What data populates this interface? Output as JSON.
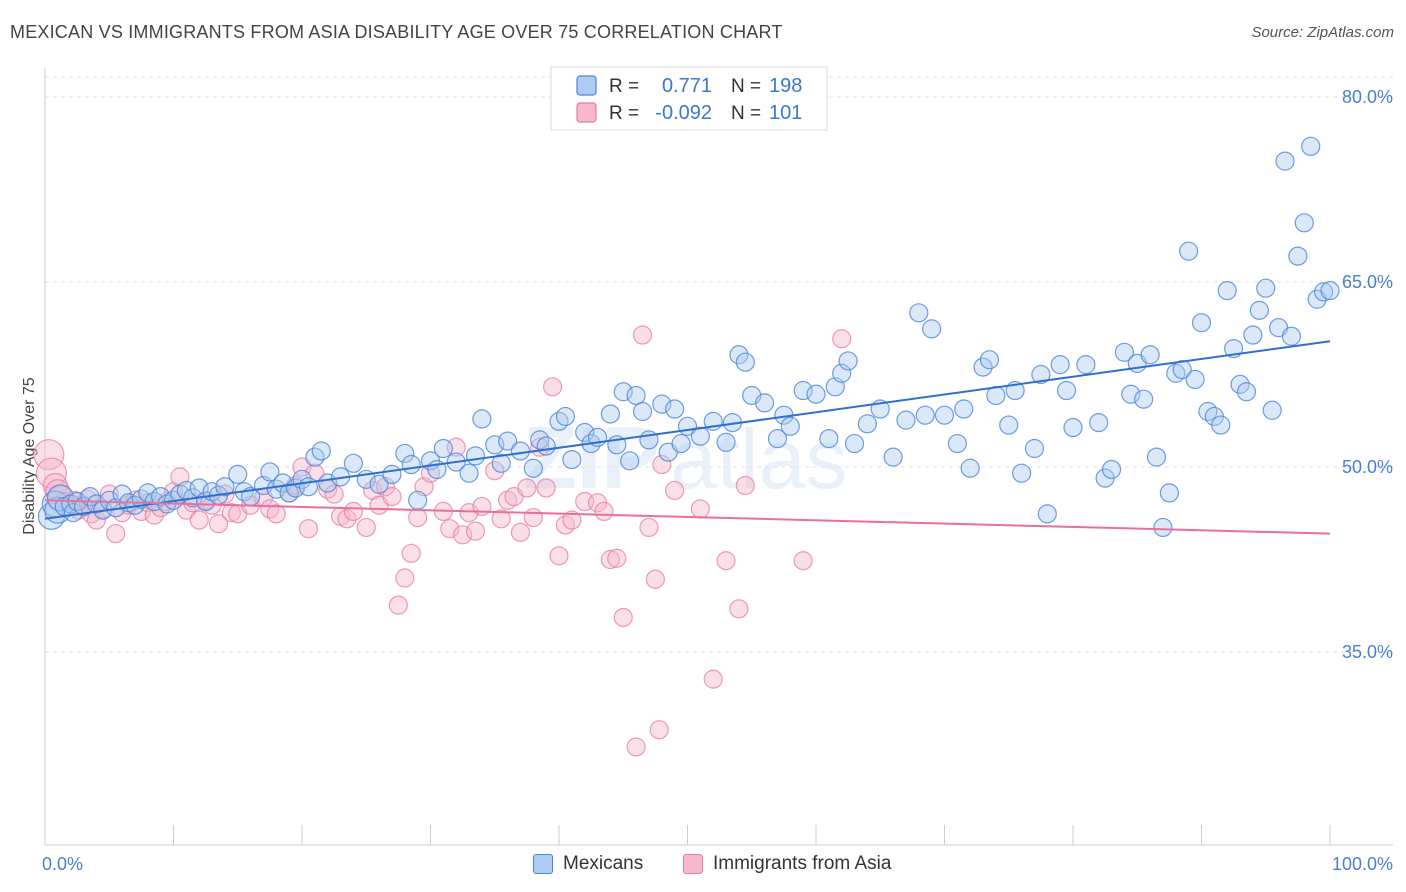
{
  "header": {
    "title": "MEXICAN VS IMMIGRANTS FROM ASIA DISABILITY AGE OVER 75 CORRELATION CHART",
    "source": "Source: ZipAtlas.com"
  },
  "colors": {
    "blue": "#4a86d8",
    "blue_fill": "#aecbf0",
    "pink": "#e87aa0",
    "pink_fill": "#f5b8cc",
    "blue_line": "#2f6fd0",
    "pink_line": "#e8709a",
    "tick_label": "#4a7fd0"
  },
  "legend": {
    "series1": {
      "r_label": "R =",
      "r_value": "0.771",
      "n_label": "N =",
      "n_value": "198"
    },
    "series2": {
      "r_label": "R =",
      "r_value": "-0.092",
      "n_label": "N =",
      "n_value": "101"
    }
  },
  "watermark": {
    "zip": "ZIP",
    "atlas": "atlas"
  },
  "chart_data": {
    "type": "scatter",
    "title": "MEXICAN VS IMMIGRANTS FROM ASIA DISABILITY AGE OVER 75 CORRELATION CHART",
    "xlabel": "",
    "ylabel": "Disability Age Over 75",
    "xlim": [
      0,
      100
    ],
    "ylim": [
      21,
      83
    ],
    "x_tick_labels": [
      "0.0%",
      "100.0%"
    ],
    "y_ticks": [
      35,
      50,
      65,
      80
    ],
    "y_tick_labels": [
      "35.0%",
      "50.0%",
      "65.0%",
      "80.0%"
    ],
    "legend_position": "top-center",
    "series": [
      {
        "name": "Mexicans",
        "r": 0.771,
        "n": 198,
        "trend": [
          [
            0,
            45.8
          ],
          [
            100,
            60.2
          ]
        ],
        "points": [
          [
            0.5,
            46
          ],
          [
            0.8,
            47
          ],
          [
            1,
            46.5
          ],
          [
            1.2,
            47.5
          ],
          [
            1.5,
            46.8
          ],
          [
            2,
            47
          ],
          [
            2.2,
            46.3
          ],
          [
            2.5,
            47.2
          ],
          [
            3,
            46.8
          ],
          [
            3.5,
            47.6
          ],
          [
            4,
            47
          ],
          [
            4.5,
            46.5
          ],
          [
            5,
            47.3
          ],
          [
            5.5,
            46.7
          ],
          [
            6,
            47.8
          ],
          [
            6.5,
            47.1
          ],
          [
            7,
            46.9
          ],
          [
            7.5,
            47.4
          ],
          [
            8,
            47.9
          ],
          [
            8.5,
            47.2
          ],
          [
            9,
            47.6
          ],
          [
            9.5,
            47
          ],
          [
            10,
            47.3
          ],
          [
            10.5,
            47.8
          ],
          [
            11,
            48.1
          ],
          [
            11.5,
            47.5
          ],
          [
            12,
            48.3
          ],
          [
            12.5,
            47.2
          ],
          [
            13,
            48
          ],
          [
            13.5,
            47.7
          ],
          [
            14,
            48.4
          ],
          [
            15,
            49.4
          ],
          [
            15.5,
            48
          ],
          [
            16,
            47.6
          ],
          [
            17,
            48.5
          ],
          [
            17.5,
            49.6
          ],
          [
            18,
            48.2
          ],
          [
            18.5,
            48.7
          ],
          [
            19,
            47.9
          ],
          [
            19.5,
            48.3
          ],
          [
            20,
            49
          ],
          [
            20.5,
            48.4
          ],
          [
            21,
            50.8
          ],
          [
            21.5,
            51.3
          ],
          [
            22,
            48.7
          ],
          [
            23,
            49.2
          ],
          [
            24,
            50.3
          ],
          [
            25,
            49
          ],
          [
            26,
            48.6
          ],
          [
            27,
            49.4
          ],
          [
            28,
            51.1
          ],
          [
            28.5,
            50.2
          ],
          [
            29,
            47.3
          ],
          [
            30,
            50.5
          ],
          [
            30.5,
            49.8
          ],
          [
            31,
            51.5
          ],
          [
            32,
            50.4
          ],
          [
            33,
            49.5
          ],
          [
            33.5,
            50.9
          ],
          [
            34,
            53.9
          ],
          [
            35,
            51.8
          ],
          [
            35.5,
            50.3
          ],
          [
            36,
            52.1
          ],
          [
            37,
            51.3
          ],
          [
            38,
            49.9
          ],
          [
            38.5,
            52.2
          ],
          [
            39,
            51.7
          ],
          [
            40,
            53.7
          ],
          [
            40.5,
            54.1
          ],
          [
            41,
            50.6
          ],
          [
            42,
            52.8
          ],
          [
            42.5,
            51.9
          ],
          [
            43,
            52.4
          ],
          [
            44,
            54.3
          ],
          [
            44.5,
            51.8
          ],
          [
            45,
            56.1
          ],
          [
            45.5,
            50.5
          ],
          [
            46,
            55.8
          ],
          [
            46.5,
            54.5
          ],
          [
            47,
            52.2
          ],
          [
            48,
            55.1
          ],
          [
            48.5,
            51.2
          ],
          [
            49,
            54.7
          ],
          [
            49.5,
            51.9
          ],
          [
            50,
            53.3
          ],
          [
            51,
            52.5
          ],
          [
            52,
            53.7
          ],
          [
            53,
            52
          ],
          [
            53.5,
            53.6
          ],
          [
            54,
            59.1
          ],
          [
            54.5,
            58.5
          ],
          [
            55,
            55.8
          ],
          [
            56,
            55.2
          ],
          [
            57,
            52.3
          ],
          [
            57.5,
            54.2
          ],
          [
            58,
            53.3
          ],
          [
            59,
            56.2
          ],
          [
            60,
            55.9
          ],
          [
            61,
            52.3
          ],
          [
            61.5,
            56.5
          ],
          [
            62,
            57.6
          ],
          [
            62.5,
            58.6
          ],
          [
            63,
            51.9
          ],
          [
            64,
            53.5
          ],
          [
            65,
            54.7
          ],
          [
            66,
            50.8
          ],
          [
            67,
            53.8
          ],
          [
            68,
            62.5
          ],
          [
            68.5,
            54.2
          ],
          [
            69,
            61.2
          ],
          [
            70,
            54.2
          ],
          [
            71,
            51.9
          ],
          [
            71.5,
            54.7
          ],
          [
            72,
            49.9
          ],
          [
            73,
            58.1
          ],
          [
            73.5,
            58.7
          ],
          [
            74,
            55.8
          ],
          [
            75,
            53.4
          ],
          [
            75.5,
            56.2
          ],
          [
            76,
            49.5
          ],
          [
            77,
            51.5
          ],
          [
            77.5,
            57.5
          ],
          [
            78,
            46.2
          ],
          [
            79,
            58.3
          ],
          [
            79.5,
            56.2
          ],
          [
            80,
            53.2
          ],
          [
            81,
            58.3
          ],
          [
            82,
            53.6
          ],
          [
            82.5,
            49.1
          ],
          [
            83,
            49.8
          ],
          [
            84,
            59.3
          ],
          [
            84.5,
            55.9
          ],
          [
            85,
            58.4
          ],
          [
            85.5,
            55.5
          ],
          [
            86,
            59.1
          ],
          [
            86.5,
            50.8
          ],
          [
            87,
            45.1
          ],
          [
            87.5,
            47.9
          ],
          [
            88,
            57.6
          ],
          [
            88.5,
            57.9
          ],
          [
            89,
            67.5
          ],
          [
            89.5,
            57.1
          ],
          [
            90,
            61.7
          ],
          [
            90.5,
            54.5
          ],
          [
            91,
            54.1
          ],
          [
            91.5,
            53.4
          ],
          [
            92,
            64.3
          ],
          [
            92.5,
            59.6
          ],
          [
            93,
            56.7
          ],
          [
            93.5,
            56.1
          ],
          [
            94,
            60.7
          ],
          [
            94.5,
            62.7
          ],
          [
            95,
            64.5
          ],
          [
            95.5,
            54.6
          ],
          [
            96,
            61.3
          ],
          [
            96.5,
            74.8
          ],
          [
            97,
            60.6
          ],
          [
            97.5,
            67.1
          ],
          [
            98,
            69.8
          ],
          [
            98.5,
            76
          ],
          [
            99,
            63.6
          ],
          [
            99.5,
            64.2
          ],
          [
            100,
            64.3
          ]
        ]
      },
      {
        "name": "Immigrants from Asia",
        "r": -0.092,
        "n": 101,
        "trend": [
          [
            0,
            47.3
          ],
          [
            100,
            44.6
          ]
        ],
        "points": [
          [
            0.3,
            51
          ],
          [
            0.5,
            49.5
          ],
          [
            0.8,
            48.5
          ],
          [
            1,
            48
          ],
          [
            1.2,
            47.5
          ],
          [
            1.5,
            47.2
          ],
          [
            1.8,
            46.8
          ],
          [
            2,
            47
          ],
          [
            2.3,
            47.3
          ],
          [
            2.6,
            46.5
          ],
          [
            3,
            46.9
          ],
          [
            3.3,
            47.4
          ],
          [
            3.6,
            46.2
          ],
          [
            4,
            45.7
          ],
          [
            4.5,
            46.6
          ],
          [
            5,
            47.8
          ],
          [
            5.5,
            44.6
          ],
          [
            6,
            46.3
          ],
          [
            6.5,
            46.9
          ],
          [
            7,
            47.3
          ],
          [
            7.5,
            46.4
          ],
          [
            8,
            47.1
          ],
          [
            8.5,
            46.1
          ],
          [
            9,
            46.7
          ],
          [
            9.5,
            47.2
          ],
          [
            10,
            48
          ],
          [
            10.5,
            49.2
          ],
          [
            11,
            46.5
          ],
          [
            11.5,
            47.1
          ],
          [
            12,
            45.7
          ],
          [
            12.5,
            47.3
          ],
          [
            13,
            46.9
          ],
          [
            13.5,
            45.4
          ],
          [
            14,
            47.8
          ],
          [
            14.5,
            46.3
          ],
          [
            15,
            46.2
          ],
          [
            16,
            46.9
          ],
          [
            17,
            47.5
          ],
          [
            17.5,
            46.6
          ],
          [
            18,
            46.2
          ],
          [
            19,
            47.9
          ],
          [
            19.5,
            48.5
          ],
          [
            20,
            50
          ],
          [
            20.5,
            45
          ],
          [
            21,
            49.5
          ],
          [
            22,
            48.2
          ],
          [
            22.5,
            47.8
          ],
          [
            23,
            46
          ],
          [
            23.5,
            45.8
          ],
          [
            24,
            46.4
          ],
          [
            25,
            45.1
          ],
          [
            25.5,
            48.1
          ],
          [
            26,
            46.9
          ],
          [
            26.5,
            48.4
          ],
          [
            27,
            47.6
          ],
          [
            27.5,
            38.8
          ],
          [
            28,
            41
          ],
          [
            28.5,
            43
          ],
          [
            29,
            45.9
          ],
          [
            29.5,
            48.4
          ],
          [
            30,
            49.5
          ],
          [
            31,
            46.4
          ],
          [
            31.5,
            45
          ],
          [
            32,
            51.6
          ],
          [
            32.5,
            44.5
          ],
          [
            33,
            46.3
          ],
          [
            33.5,
            44.8
          ],
          [
            34,
            46.8
          ],
          [
            35,
            49.7
          ],
          [
            35.5,
            45.8
          ],
          [
            36,
            47.3
          ],
          [
            36.5,
            47.6
          ],
          [
            37,
            44.7
          ],
          [
            37.5,
            48.3
          ],
          [
            38,
            45.9
          ],
          [
            38.5,
            51.6
          ],
          [
            39,
            48.3
          ],
          [
            39.5,
            56.5
          ],
          [
            40,
            42.8
          ],
          [
            40.5,
            45.3
          ],
          [
            41,
            45.7
          ],
          [
            42,
            47.2
          ],
          [
            43,
            47.1
          ],
          [
            43.5,
            46.4
          ],
          [
            44,
            42.5
          ],
          [
            44.5,
            42.6
          ],
          [
            45,
            37.8
          ],
          [
            46,
            27.3
          ],
          [
            46.5,
            60.7
          ],
          [
            47,
            45.1
          ],
          [
            47.5,
            40.9
          ],
          [
            47.8,
            28.7
          ],
          [
            48,
            50.2
          ],
          [
            49,
            48.1
          ],
          [
            51,
            46.6
          ],
          [
            52,
            32.8
          ],
          [
            53,
            42.4
          ],
          [
            54,
            38.5
          ],
          [
            54.5,
            48.5
          ],
          [
            59,
            42.4
          ],
          [
            62,
            60.4
          ]
        ]
      }
    ]
  },
  "bottom_legend": {
    "series1": "Mexicans",
    "series2": "Immigrants from Asia"
  }
}
